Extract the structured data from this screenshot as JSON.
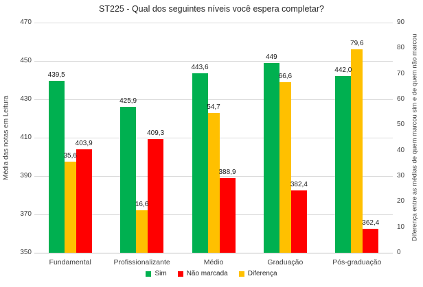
{
  "title": "ST225 - Qual dos seguintes níveis você espera completar?",
  "chart_data": {
    "type": "bar",
    "categories": [
      "Fundamental",
      "Profissionalizante",
      "Médio",
      "Graduação",
      "Pós-graduação"
    ],
    "series": [
      {
        "name": "Sim",
        "axis": "left",
        "color": "#00B050",
        "values": [
          439.5,
          425.9,
          443.6,
          449,
          442.0
        ],
        "labels": [
          "439,5",
          "425,9",
          "443,6",
          "449",
          "442,0"
        ]
      },
      {
        "name": "Não marcada",
        "axis": "left",
        "color": "#FF0000",
        "values": [
          403.9,
          409.3,
          388.9,
          382.4,
          362.4
        ],
        "labels": [
          "403,9",
          "409,3",
          "388,9",
          "382,4",
          "362,4"
        ]
      },
      {
        "name": "Diferença",
        "axis": "right",
        "color": "#FFC000",
        "values": [
          35.6,
          16.6,
          54.7,
          66.6,
          79.6
        ],
        "labels": [
          "35,6",
          "16,6",
          "54,7",
          "66,6",
          "79,6"
        ]
      }
    ],
    "left_axis": {
      "title": "Média das notas em Leitura",
      "min": 350,
      "max": 470,
      "step": 20,
      "ticks": [
        "470",
        "450",
        "430",
        "410",
        "390",
        "370",
        "350"
      ]
    },
    "right_axis": {
      "title": "Diferença entre as médias de quem marcou sim e de quem não marcou",
      "min": 0,
      "max": 90,
      "step": 10,
      "ticks": [
        "90",
        "80",
        "70",
        "60",
        "50",
        "40",
        "30",
        "20",
        "10",
        "0"
      ]
    },
    "legend": [
      "Sim",
      "Não marcada",
      "Diferença"
    ],
    "legend_position": "bottom",
    "grid": true,
    "colors": {
      "sim": "#00B050",
      "nao_marcada": "#FF0000",
      "diferenca": "#FFC000",
      "gridline": "#d9d9d9"
    }
  }
}
